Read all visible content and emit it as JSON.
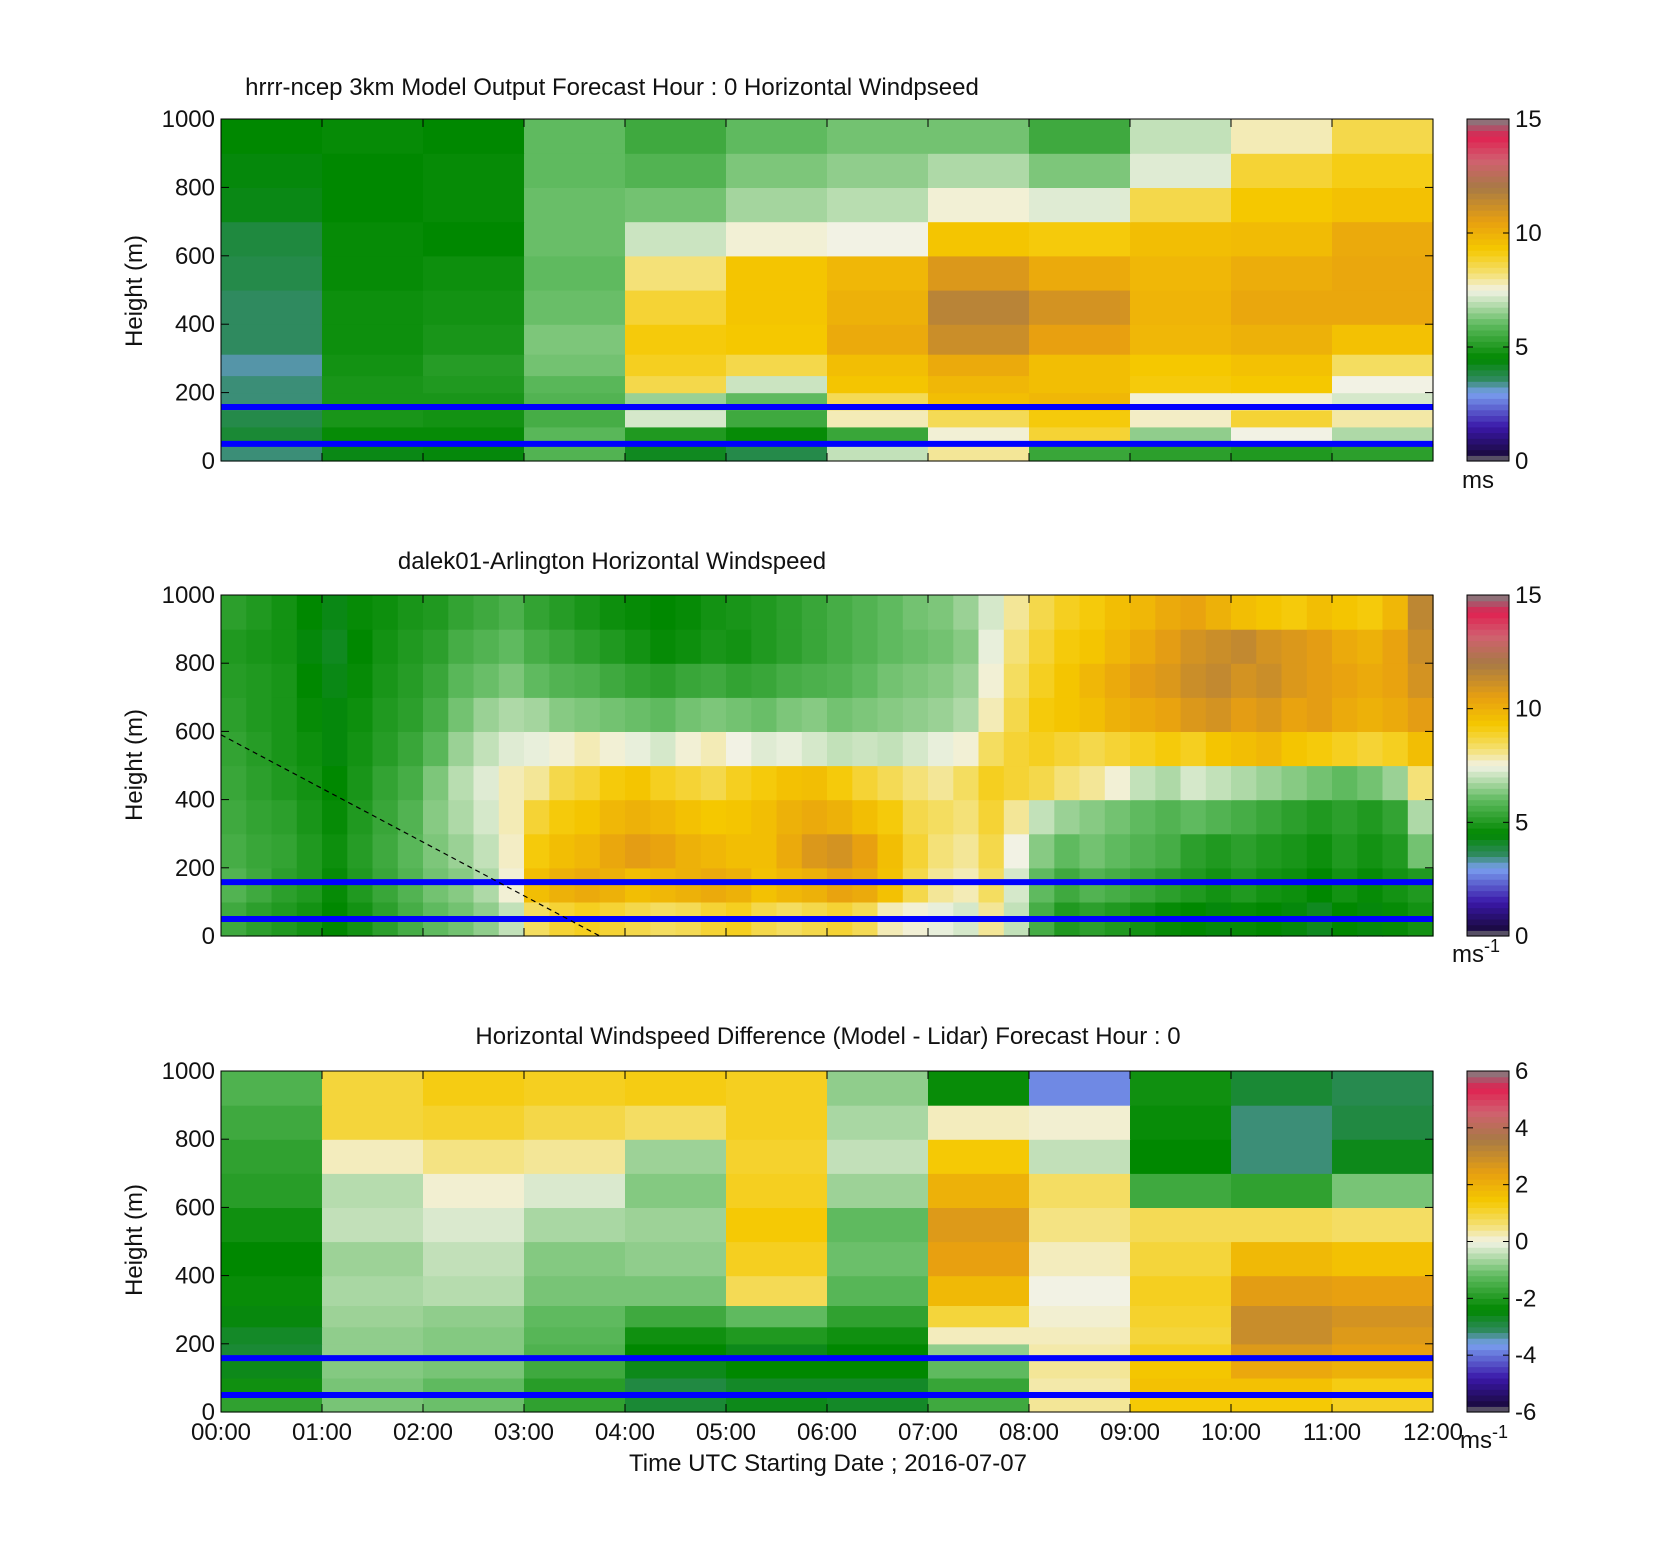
{
  "figure": {
    "xlabel": "Time UTC  Starting Date ; 2016-07-07",
    "xtick_labels": [
      "00:00",
      "01:00",
      "02:00",
      "03:00",
      "04:00",
      "05:00",
      "06:00",
      "07:00",
      "08:00",
      "09:00",
      "10:00",
      "11:00",
      "12:00"
    ]
  },
  "colors": {
    "marker_line": "#0000ff",
    "dashed_line": "#000000",
    "missing": "#ffffff"
  },
  "chart_data": [
    {
      "type": "heatmap",
      "title": "hrrr-ncep 3km Model Output   Forecast Hour : 0 Horizontal Windpseed",
      "ylabel": "Height (m)",
      "xlim": [
        "00:00",
        "12:00"
      ],
      "ylim": [
        0,
        1000
      ],
      "ytick_labels": [
        "0",
        "200",
        "400",
        "600",
        "800",
        "1000"
      ],
      "colorbar": {
        "range": [
          0,
          15
        ],
        "tick_labels": [
          "0",
          "5",
          "10",
          "15"
        ],
        "unit": "ms"
      },
      "hours": [
        0,
        1,
        2,
        3,
        4,
        5,
        6,
        7,
        8,
        9,
        10,
        11
      ],
      "heights_m": [
        25,
        75,
        125,
        175,
        225,
        275,
        350,
        450,
        550,
        650,
        750,
        850,
        950
      ],
      "values": [
        [
          3.5,
          4.3,
          4.4,
          5.8,
          4.2,
          3.8,
          7.0,
          8.0,
          5.4,
          5.2,
          5.0,
          5.2
        ],
        [
          4.0,
          4.6,
          4.6,
          5.9,
          5.0,
          4.6,
          5.4,
          7.6,
          8.8,
          6.5,
          7.5,
          6.8
        ],
        [
          3.8,
          4.9,
          4.8,
          5.6,
          7.2,
          5.5,
          7.8,
          8.5,
          9.2,
          7.7,
          8.8,
          7.9
        ],
        [
          3.5,
          4.9,
          4.9,
          5.8,
          6.6,
          6.0,
          8.5,
          9.6,
          9.8,
          7.6,
          7.6,
          7.2
        ],
        [
          3.5,
          4.9,
          5.0,
          5.9,
          8.6,
          7.1,
          9.4,
          9.8,
          9.6,
          9.2,
          9.3,
          7.5
        ],
        [
          3.3,
          4.8,
          5.1,
          6.2,
          9.0,
          8.6,
          9.6,
          10.2,
          9.6,
          9.3,
          9.5,
          8.4
        ],
        [
          3.6,
          4.7,
          4.9,
          6.3,
          9.2,
          9.3,
          10.2,
          11.2,
          10.5,
          9.8,
          10.0,
          9.5
        ],
        [
          3.6,
          4.7,
          4.8,
          6.1,
          8.8,
          9.4,
          10.0,
          11.6,
          11.0,
          9.9,
          10.3,
          10.3
        ],
        [
          3.8,
          4.6,
          4.7,
          6.0,
          8.2,
          9.4,
          9.8,
          10.8,
          10.2,
          9.8,
          10.1,
          10.3
        ],
        [
          3.9,
          4.6,
          4.5,
          6.1,
          7.1,
          7.6,
          7.5,
          9.4,
          9.2,
          9.6,
          9.7,
          10.2
        ],
        [
          4.3,
          4.5,
          4.6,
          6.1,
          6.2,
          6.7,
          6.9,
          7.6,
          7.3,
          8.6,
          9.3,
          9.5
        ],
        [
          4.4,
          4.5,
          4.6,
          6.0,
          5.8,
          6.3,
          6.5,
          6.8,
          6.3,
          7.3,
          8.8,
          9.1
        ],
        [
          4.5,
          4.6,
          4.5,
          6.0,
          5.5,
          6.0,
          6.2,
          6.2,
          5.5,
          7.0,
          7.8,
          8.6
        ]
      ]
    },
    {
      "type": "heatmap",
      "title": "dalek01-Arlington  Horizontal Windspeed",
      "ylabel": "Height (m)",
      "xlim": [
        "00:00",
        "12:00"
      ],
      "ylim": [
        0,
        1000
      ],
      "ytick_labels": [
        "0",
        "200",
        "400",
        "600",
        "800",
        "1000"
      ],
      "colorbar": {
        "range": [
          0,
          15
        ],
        "tick_labels": [
          "0",
          "5",
          "10",
          "15"
        ],
        "unit": "ms",
        "unit_sup": "-1"
      },
      "hours": [
        0.125,
        0.375,
        0.625,
        0.875,
        1.125,
        1.375,
        1.625,
        1.875,
        2.125,
        2.375,
        2.625,
        2.875,
        3.125,
        3.375,
        3.625,
        3.875,
        4.125,
        4.375,
        4.625,
        4.875,
        5.125,
        5.375,
        5.625,
        5.875,
        6.125,
        6.375,
        6.625,
        6.875,
        7.125,
        7.375,
        7.625,
        7.875,
        8.125,
        8.375,
        8.625,
        8.875,
        9.125,
        9.375,
        9.625,
        9.875,
        10.125,
        10.375,
        10.625,
        10.875,
        11.125,
        11.375,
        11.625,
        11.875
      ],
      "heights_m": [
        50,
        150,
        250,
        350,
        450,
        550,
        650,
        750,
        850,
        950
      ],
      "values": [
        [
          5.5,
          5.2,
          5.0,
          4.8,
          4.5,
          4.8,
          5.2,
          5.6,
          6.0,
          6.2,
          6.5,
          7.0,
          8.4,
          8.8,
          9.0,
          8.8,
          8.6,
          8.4,
          8.5,
          8.8,
          9.0,
          8.6,
          8.4,
          8.6,
          8.8,
          8.5,
          7.8,
          7.6,
          7.4,
          7.2,
          8.0,
          7.0,
          5.6,
          5.0,
          5.2,
          5.0,
          4.8,
          4.6,
          4.5,
          4.4,
          4.6,
          4.5,
          4.4,
          4.2,
          4.5,
          4.4,
          4.6,
          4.8
        ],
        [
          5.8,
          5.5,
          5.2,
          5.0,
          4.6,
          5.0,
          5.4,
          5.8,
          6.2,
          6.4,
          6.8,
          7.6,
          9.6,
          10.0,
          10.2,
          10.0,
          9.6,
          9.8,
          10.0,
          10.2,
          10.0,
          9.5,
          9.8,
          10.0,
          10.4,
          10.2,
          9.5,
          8.6,
          8.0,
          7.8,
          8.4,
          7.2,
          6.0,
          5.5,
          5.8,
          5.6,
          5.4,
          5.2,
          5.0,
          4.8,
          5.0,
          4.8,
          4.7,
          4.5,
          4.8,
          4.6,
          4.8,
          5.0
        ],
        [
          5.6,
          5.4,
          5.3,
          5.0,
          4.7,
          5.1,
          5.5,
          5.9,
          6.3,
          6.6,
          7.0,
          7.7,
          9.2,
          9.6,
          9.8,
          10.3,
          10.6,
          10.4,
          10.0,
          9.8,
          9.6,
          9.6,
          10.2,
          10.8,
          11.0,
          10.5,
          9.6,
          8.8,
          8.2,
          8.0,
          8.6,
          7.5,
          6.4,
          6.0,
          6.2,
          6.0,
          5.8,
          5.6,
          5.2,
          5.0,
          5.2,
          5.0,
          4.9,
          4.7,
          5.0,
          4.8,
          5.0,
          6.2
        ],
        [
          5.5,
          5.3,
          5.2,
          4.9,
          4.6,
          5.0,
          5.4,
          5.8,
          6.4,
          6.8,
          7.2,
          7.8,
          8.8,
          9.2,
          9.4,
          9.8,
          10.0,
          9.8,
          9.5,
          9.3,
          9.4,
          9.6,
          10.0,
          10.2,
          10.0,
          9.6,
          9.2,
          8.6,
          8.4,
          8.2,
          8.8,
          8.0,
          7.0,
          6.6,
          6.4,
          6.2,
          6.0,
          5.8,
          6.0,
          5.8,
          5.6,
          5.4,
          5.2,
          5.0,
          5.2,
          5.0,
          5.3,
          6.8
        ],
        [
          5.4,
          5.2,
          5.0,
          4.8,
          4.5,
          4.9,
          5.3,
          5.6,
          6.3,
          6.9,
          7.3,
          7.8,
          8.0,
          8.6,
          8.8,
          9.2,
          9.4,
          9.0,
          8.8,
          8.6,
          9.0,
          9.2,
          9.5,
          9.6,
          9.2,
          8.8,
          8.5,
          8.2,
          8.0,
          8.4,
          9.0,
          8.8,
          8.6,
          8.2,
          8.0,
          7.6,
          7.0,
          6.8,
          7.2,
          7.0,
          6.8,
          6.6,
          6.4,
          6.2,
          6.0,
          6.2,
          6.6,
          8.2
        ],
        [
          5.3,
          5.1,
          4.9,
          4.7,
          4.4,
          4.8,
          5.1,
          5.4,
          5.9,
          6.6,
          7.0,
          7.3,
          7.4,
          7.6,
          7.8,
          7.6,
          7.4,
          7.2,
          7.6,
          7.8,
          7.5,
          7.3,
          7.4,
          7.2,
          7.0,
          7.1,
          7.0,
          7.2,
          7.4,
          7.6,
          8.4,
          8.8,
          9.0,
          8.8,
          8.6,
          8.8,
          9.0,
          9.2,
          9.0,
          9.4,
          9.6,
          9.8,
          9.4,
          9.2,
          9.0,
          8.8,
          9.0,
          9.6
        ],
        [
          5.2,
          5.0,
          4.9,
          4.6,
          4.4,
          4.7,
          5.0,
          5.2,
          5.6,
          6.2,
          6.6,
          6.8,
          6.7,
          6.4,
          6.3,
          6.2,
          6.1,
          6.0,
          6.2,
          6.3,
          6.2,
          6.1,
          6.3,
          6.4,
          6.2,
          6.3,
          6.4,
          6.5,
          6.6,
          6.8,
          7.8,
          8.6,
          9.2,
          9.4,
          9.6,
          10.0,
          10.2,
          10.4,
          10.8,
          11.0,
          10.6,
          10.8,
          10.4,
          10.6,
          10.2,
          10.0,
          10.2,
          10.6
        ],
        [
          5.1,
          5.0,
          4.9,
          4.5,
          4.3,
          4.6,
          4.9,
          5.1,
          5.4,
          5.9,
          6.1,
          6.3,
          6.0,
          5.8,
          5.7,
          5.5,
          5.3,
          5.2,
          5.4,
          5.5,
          5.3,
          5.4,
          5.6,
          5.7,
          5.8,
          6.0,
          6.2,
          6.3,
          6.4,
          6.6,
          7.6,
          8.4,
          9.0,
          9.4,
          9.8,
          10.2,
          10.6,
          10.8,
          11.2,
          11.4,
          11.0,
          11.2,
          10.8,
          10.6,
          10.4,
          10.2,
          10.4,
          11.0
        ],
        [
          5.0,
          4.9,
          4.8,
          4.4,
          4.2,
          4.5,
          4.8,
          5.0,
          5.2,
          5.6,
          5.8,
          6.0,
          5.6,
          5.4,
          5.2,
          5.0,
          4.8,
          4.6,
          4.7,
          4.9,
          4.8,
          5.0,
          5.2,
          5.4,
          5.6,
          5.8,
          6.0,
          6.1,
          6.2,
          6.4,
          7.4,
          8.2,
          8.8,
          9.2,
          9.4,
          9.8,
          10.2,
          10.6,
          11.0,
          11.2,
          11.4,
          11.0,
          10.8,
          10.6,
          10.2,
          10.0,
          10.4,
          11.2
        ],
        [
          5.2,
          5.0,
          4.8,
          4.5,
          4.3,
          4.6,
          4.7,
          4.9,
          5.0,
          5.3,
          5.5,
          5.7,
          5.3,
          5.1,
          4.9,
          4.7,
          4.6,
          4.5,
          4.6,
          4.8,
          4.9,
          5.0,
          5.2,
          5.4,
          5.6,
          5.8,
          6.0,
          6.2,
          6.3,
          6.6,
          7.2,
          8.0,
          8.6,
          9.0,
          9.2,
          9.6,
          9.8,
          10.2,
          10.4,
          10.0,
          9.6,
          9.4,
          9.2,
          9.6,
          9.4,
          9.2,
          9.8,
          11.5
        ]
      ],
      "reference_line": {
        "style": "dashed",
        "from": {
          "hour": 0,
          "height_m": 590
        },
        "to": {
          "hour": 3.75,
          "height_m": 0
        }
      }
    },
    {
      "type": "heatmap",
      "title": "Horizontal Windspeed Difference (Model - Lidar) Forecast Hour : 0",
      "ylabel": "Height (m)",
      "xlim": [
        "00:00",
        "12:00"
      ],
      "ylim": [
        0,
        1000
      ],
      "ytick_labels": [
        "0",
        "200",
        "400",
        "600",
        "800",
        "1000"
      ],
      "colorbar": {
        "range": [
          -6,
          6
        ],
        "tick_labels": [
          "-6",
          "-4",
          "-2",
          "0",
          "2",
          "4",
          "6"
        ],
        "unit": "ms",
        "unit_sup": "-1"
      },
      "hours": [
        0,
        1,
        2,
        3,
        4,
        5,
        6,
        7,
        8,
        9,
        10,
        11
      ],
      "heights_m": [
        25,
        75,
        125,
        175,
        225,
        275,
        350,
        450,
        550,
        650,
        750,
        850,
        950
      ],
      "values": [
        [
          -1.8,
          -1.0,
          -1.1,
          -1.8,
          -2.8,
          -2.6,
          -2.7,
          -1.6,
          0.4,
          1.4,
          1.4,
          1.2
        ],
        [
          -2.2,
          -1.0,
          -1.2,
          -1.9,
          -2.9,
          -2.7,
          -2.7,
          -1.7,
          0.3,
          1.6,
          1.6,
          1.3
        ],
        [
          -2.6,
          -0.9,
          -1.0,
          -1.6,
          -2.6,
          -2.4,
          -2.4,
          -1.2,
          0.4,
          1.5,
          2.2,
          2.0
        ],
        [
          -2.8,
          -0.8,
          -0.9,
          -1.4,
          -2.4,
          -2.6,
          -2.4,
          -0.8,
          0.3,
          1.2,
          2.6,
          2.4
        ],
        [
          -2.7,
          -0.8,
          -0.9,
          -1.3,
          -2.2,
          -2.0,
          -2.2,
          0.2,
          0.2,
          1.0,
          3.0,
          2.6
        ],
        [
          -2.5,
          -0.7,
          -0.8,
          -1.2,
          -1.6,
          -1.2,
          -1.8,
          1.0,
          0.1,
          1.1,
          3.0,
          2.8
        ],
        [
          -2.3,
          -0.6,
          -0.5,
          -1.0,
          -1.0,
          0.8,
          -1.3,
          1.8,
          0.0,
          1.2,
          2.5,
          2.4
        ],
        [
          -2.4,
          -0.7,
          -0.4,
          -0.9,
          -0.8,
          1.2,
          -1.1,
          2.4,
          0.2,
          1.0,
          1.8,
          1.6
        ],
        [
          -2.2,
          -0.4,
          -0.2,
          -0.6,
          -0.7,
          1.4,
          -1.2,
          2.6,
          0.5,
          0.8,
          0.8,
          0.7
        ],
        [
          -1.9,
          -0.5,
          0.1,
          -0.2,
          -0.9,
          1.2,
          -0.7,
          2.0,
          0.7,
          -1.6,
          -1.8,
          -1.0
        ],
        [
          -1.8,
          0.2,
          0.5,
          0.4,
          -0.7,
          1.1,
          -0.4,
          1.4,
          -0.4,
          -2.4,
          -3.2,
          -2.6
        ],
        [
          -1.6,
          1.0,
          1.1,
          0.9,
          0.7,
          1.2,
          -0.6,
          0.2,
          0.1,
          -2.3,
          -3.2,
          -2.9
        ],
        [
          -1.4,
          1.0,
          1.3,
          1.2,
          1.3,
          1.2,
          -0.8,
          -2.3,
          -3.8,
          -2.2,
          -2.8,
          -3.0
        ]
      ]
    }
  ]
}
